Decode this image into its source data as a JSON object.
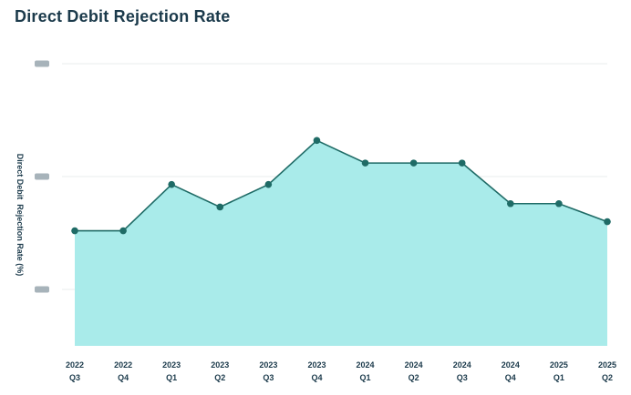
{
  "chart_data": {
    "type": "area",
    "title": "Direct Debit Rejection Rate",
    "ylabel": "Direct Debit  Rejection Rate (%)",
    "xlabel": "",
    "categories": [
      [
        "2022",
        "Q3"
      ],
      [
        "2022",
        "Q4"
      ],
      [
        "2023",
        "Q1"
      ],
      [
        "2023",
        "Q2"
      ],
      [
        "2023",
        "Q3"
      ],
      [
        "2023",
        "Q4"
      ],
      [
        "2024",
        "Q1"
      ],
      [
        "2024",
        "Q2"
      ],
      [
        "2024",
        "Q3"
      ],
      [
        "2024",
        "Q4"
      ],
      [
        "2025",
        "Q1"
      ],
      [
        "2025",
        "Q2"
      ]
    ],
    "series": [
      {
        "values": [
          1.02,
          1.02,
          1.43,
          1.23,
          1.43,
          1.82,
          1.62,
          1.62,
          1.62,
          1.26,
          1.26,
          1.1
        ]
      }
    ],
    "ylim": [
      0,
      2.5
    ],
    "yticks": [
      0.5,
      1.5,
      2.5
    ],
    "ytick_labels_obscured": true,
    "grid": true,
    "legend": "none",
    "colors": {
      "line": "#1f6b66",
      "fill": "#a9ebea",
      "marker": "#1f6b66",
      "grid": "#e9ecee",
      "blurred_tick": "#8a9aa3"
    }
  }
}
